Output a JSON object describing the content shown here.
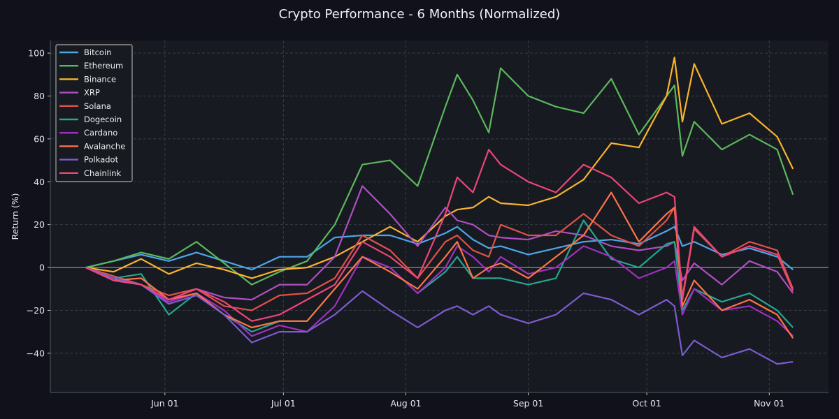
{
  "chart_data": {
    "type": "line",
    "title": "Crypto Performance - 6 Months (Normalized)",
    "xlabel": "",
    "ylabel": "Return (%)",
    "xlim": [
      "May 03",
      "Nov 16"
    ],
    "ylim": [
      -58.3,
      105.9
    ],
    "x_ticks": [
      "Jun 01",
      "Jul 01",
      "Aug 01",
      "Sep 01",
      "Oct 01",
      "Nov 01"
    ],
    "y_ticks": [
      -40,
      -20,
      0,
      20,
      40,
      60,
      80,
      100
    ],
    "grid": true,
    "zero_line": true,
    "legend_position": "top-left",
    "x": [
      "May 12",
      "May 19",
      "May 26",
      "Jun 02",
      "Jun 09",
      "Jun 16",
      "Jun 23",
      "Jun 30",
      "Jul 07",
      "Jul 14",
      "Jul 21",
      "Jul 28",
      "Aug 04",
      "Aug 11",
      "Aug 14",
      "Aug 18",
      "Aug 22",
      "Aug 25",
      "Sep 01",
      "Sep 08",
      "Sep 15",
      "Sep 22",
      "Sep 29",
      "Oct 06",
      "Oct 08",
      "Oct 10",
      "Oct 13",
      "Oct 20",
      "Oct 27",
      "Nov 03",
      "Nov 07"
    ],
    "series": [
      {
        "name": "Bitcoin",
        "color": "#4da6e8",
        "values": [
          0,
          3,
          6,
          3,
          7,
          3,
          -1,
          5,
          5,
          14,
          15,
          15,
          11,
          16,
          19,
          13,
          9,
          10,
          6,
          9,
          12,
          13,
          11,
          17,
          19,
          10,
          12,
          6,
          9,
          5,
          -1
        ]
      },
      {
        "name": "Ethereum",
        "color": "#5cb85c",
        "values": [
          0,
          3,
          7,
          4,
          12,
          2,
          -8,
          -2,
          3,
          20,
          48,
          50,
          38,
          75,
          90,
          78,
          63,
          93,
          80,
          75,
          72,
          88,
          62,
          80,
          85,
          52,
          68,
          55,
          62,
          55,
          34
        ]
      },
      {
        "name": "Binance",
        "color": "#fbb32d",
        "values": [
          0,
          -2,
          4,
          -3,
          2,
          -1,
          -5,
          -1,
          0,
          5,
          12,
          19,
          12,
          24,
          27,
          28,
          33,
          30,
          29,
          33,
          41,
          58,
          56,
          80,
          98,
          68,
          95,
          67,
          72,
          61,
          46
        ]
      },
      {
        "name": "XRP",
        "color": "#b04fc0",
        "values": [
          0,
          -6,
          -8,
          -15,
          -10,
          -14,
          -15,
          -8,
          -8,
          5,
          38,
          25,
          10,
          28,
          22,
          20,
          15,
          14,
          13,
          17,
          15,
          10,
          8,
          10,
          12,
          -6,
          2,
          -8,
          3,
          -2,
          -12
        ]
      },
      {
        "name": "Solana",
        "color": "#e0524a",
        "values": [
          0,
          -4,
          -8,
          -13,
          -10,
          -18,
          -20,
          -13,
          -12,
          -5,
          15,
          8,
          -5,
          12,
          15,
          8,
          5,
          20,
          15,
          15,
          25,
          15,
          10,
          22,
          28,
          -15,
          18,
          5,
          12,
          8,
          -10
        ]
      },
      {
        "name": "Dogecoin",
        "color": "#26a68f",
        "values": [
          0,
          -5,
          -3,
          -22,
          -12,
          -22,
          -30,
          -25,
          -25,
          -10,
          5,
          0,
          -12,
          -2,
          5,
          -5,
          -5,
          -5,
          -8,
          -5,
          22,
          4,
          0,
          11,
          12,
          -20,
          -10,
          -16,
          -12,
          -20,
          -28
        ]
      },
      {
        "name": "Cardano",
        "color": "#a030c0",
        "values": [
          0,
          -6,
          -8,
          -16,
          -12,
          -20,
          -32,
          -27,
          -30,
          -18,
          5,
          0,
          -12,
          0,
          10,
          5,
          -2,
          5,
          -3,
          0,
          10,
          5,
          -5,
          0,
          3,
          -22,
          -10,
          -20,
          -18,
          -25,
          -32
        ]
      },
      {
        "name": "Avalanche",
        "color": "#ff7247",
        "values": [
          0,
          -6,
          -5,
          -15,
          -12,
          -22,
          -28,
          -25,
          -25,
          -10,
          5,
          -2,
          -10,
          5,
          12,
          -5,
          0,
          2,
          -5,
          5,
          15,
          35,
          12,
          25,
          28,
          -18,
          -6,
          -20,
          -15,
          -22,
          -33
        ]
      },
      {
        "name": "Polkadot",
        "color": "#7e5bd0",
        "values": [
          0,
          -5,
          -8,
          -17,
          -13,
          -22,
          -35,
          -30,
          -30,
          -22,
          -11,
          -20,
          -28,
          -20,
          -18,
          -22,
          -18,
          -22,
          -26,
          -22,
          -12,
          -15,
          -22,
          -15,
          -18,
          -41,
          -34,
          -42,
          -38,
          -45,
          -44
        ]
      },
      {
        "name": "Chainlink",
        "color": "#ec4579",
        "values": [
          0,
          -6,
          -8,
          -15,
          -10,
          -16,
          -25,
          -22,
          -15,
          -8,
          12,
          5,
          -5,
          25,
          42,
          35,
          55,
          48,
          40,
          35,
          48,
          42,
          30,
          35,
          33,
          -14,
          19,
          5,
          10,
          6,
          -11
        ]
      }
    ]
  }
}
